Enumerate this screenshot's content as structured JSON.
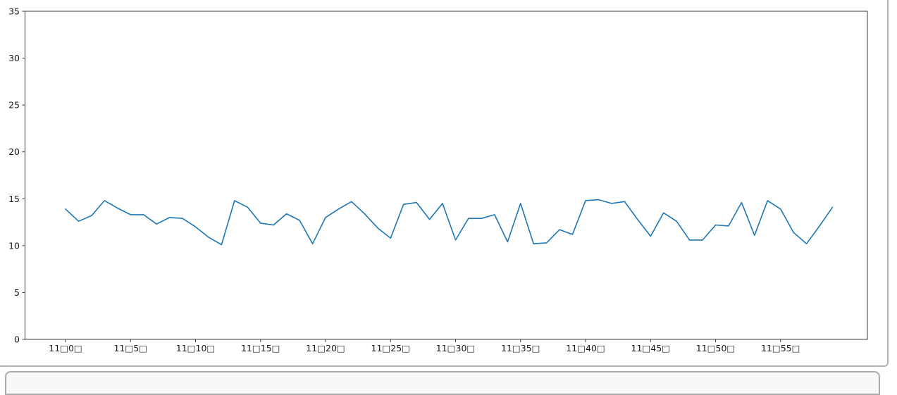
{
  "figure": {
    "background": "#ffffff",
    "panel_border_color": "#b3b3b3",
    "lower_panel_border_color": "#ababab"
  },
  "chart_data": {
    "type": "line",
    "title": "",
    "xlabel": "",
    "ylabel": "",
    "grid": false,
    "legend": null,
    "line_color": "#1f77b4",
    "axis_color": "#3a3a3a",
    "ylim": [
      0,
      35
    ],
    "y_ticks": [
      0,
      5,
      10,
      15,
      20,
      25,
      30,
      35
    ],
    "x_tick_minutes": [
      0,
      5,
      10,
      15,
      20,
      25,
      30,
      35,
      40,
      45,
      50,
      55
    ],
    "x_tick_labels": [
      "11□0□",
      "11□5□",
      "11□10□",
      "11□15□",
      "11□20□",
      "11□25□",
      "11□30□",
      "11□35□",
      "11□40□",
      "11□45□",
      "11□50□",
      "11□55□"
    ],
    "x_minutes": [
      0,
      1,
      2,
      3,
      4,
      5,
      6,
      7,
      8,
      9,
      10,
      11,
      12,
      13,
      14,
      15,
      16,
      17,
      18,
      19,
      20,
      21,
      22,
      23,
      24,
      25,
      26,
      27,
      28,
      29,
      30,
      31,
      32,
      33,
      34,
      35,
      36,
      37,
      38,
      39,
      40,
      41,
      42,
      43,
      44,
      45,
      46,
      47,
      48,
      49,
      50,
      51,
      52,
      53,
      54,
      55,
      56,
      57,
      58,
      59
    ],
    "values": [
      13.9,
      12.6,
      13.2,
      14.8,
      14.0,
      13.3,
      13.3,
      12.3,
      13.0,
      12.9,
      12.0,
      10.9,
      10.1,
      14.8,
      14.1,
      12.4,
      12.2,
      13.4,
      12.7,
      10.2,
      13.0,
      13.9,
      14.7,
      13.4,
      11.9,
      10.8,
      14.4,
      14.6,
      12.8,
      14.5,
      10.6,
      12.9,
      12.9,
      13.3,
      10.4,
      14.5,
      10.2,
      10.3,
      11.7,
      11.2,
      14.8,
      14.9,
      14.5,
      14.7,
      12.8,
      11.0,
      13.5,
      12.6,
      10.6,
      10.6,
      12.2,
      12.1,
      14.6,
      11.1,
      14.8,
      13.9,
      11.4,
      10.2,
      12.1,
      14.1
    ]
  }
}
